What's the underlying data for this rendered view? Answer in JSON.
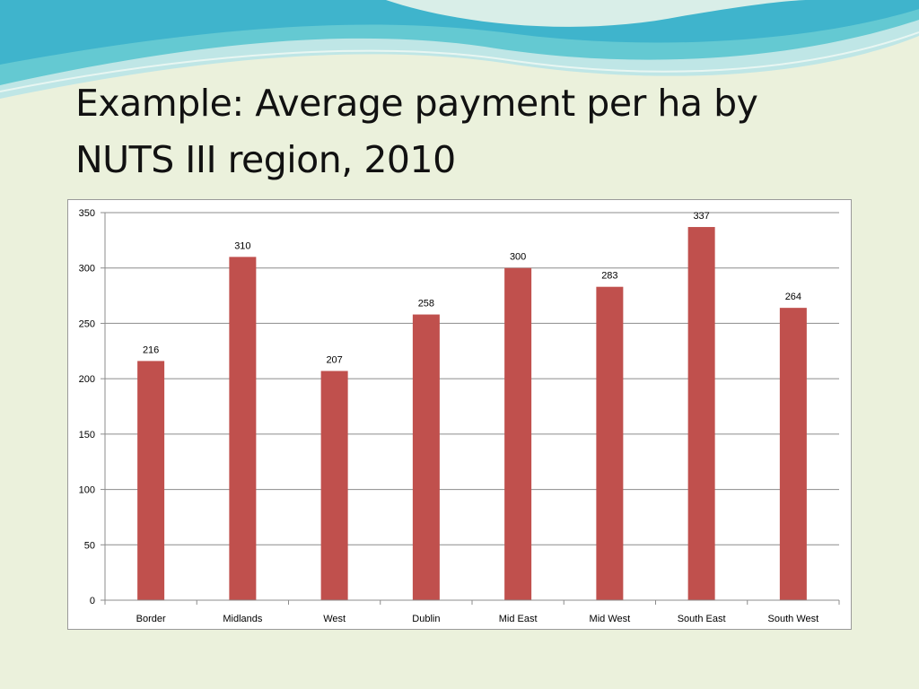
{
  "slide": {
    "title_line1": "Example: Average payment per ha by",
    "title_line2": "NUTS III region, 2010"
  },
  "colors": {
    "background": "#ebf1dc",
    "bar": "#c0504d",
    "wave_dark": "#3fc1c9",
    "wave_light": "#a8e0e4"
  },
  "chart_data": {
    "type": "bar",
    "categories": [
      "Border",
      "Midlands",
      "West",
      "Dublin",
      "Mid East",
      "Mid West",
      "South East",
      "South West"
    ],
    "values": [
      216,
      310,
      207,
      258,
      300,
      283,
      337,
      264
    ],
    "data_labels": [
      "216",
      "310",
      "207",
      "258",
      "300",
      "283",
      "337",
      "264"
    ],
    "ylim": [
      0,
      350
    ],
    "yticks": [
      0,
      50,
      100,
      150,
      200,
      250,
      300,
      350
    ],
    "ytick_labels": [
      "0",
      "50",
      "100",
      "150",
      "200",
      "250",
      "300",
      "350"
    ],
    "grid": true,
    "legend": "none",
    "title": "",
    "xlabel": "",
    "ylabel": ""
  }
}
